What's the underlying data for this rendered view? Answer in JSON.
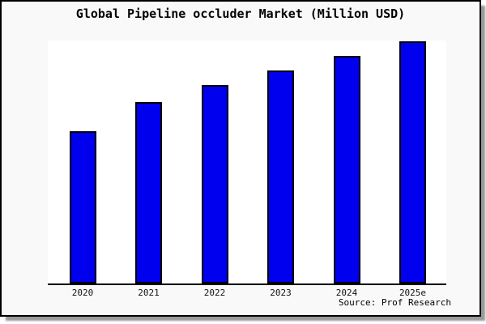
{
  "figure": {
    "card_background": "#f9f9f9",
    "plot_background": "#ffffff",
    "border_color": "#000000",
    "shadow_color": "#9a9a9a"
  },
  "chart_data": {
    "type": "bar",
    "title": "Global Pipeline occluder Market (Million USD)",
    "categories": [
      "2020",
      "2021",
      "2022",
      "2023",
      "2024",
      "2025e"
    ],
    "values": [
      62.8,
      74.7,
      81.7,
      87.7,
      93.6,
      99.7
    ],
    "value_scale": "percent of plot height; y-axis has no tick labels in the image",
    "xlabel": "",
    "ylabel": "",
    "ylim": [
      0,
      100
    ],
    "grid": false,
    "legend": false,
    "bar_color": "#0000ee",
    "bar_edge_color": "#000000",
    "source": "Source: Prof Research"
  }
}
